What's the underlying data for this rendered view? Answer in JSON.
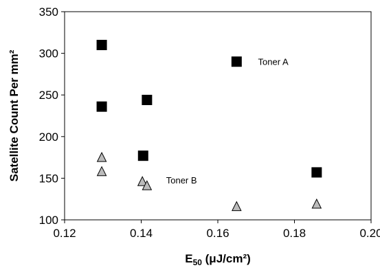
{
  "chart_data": {
    "type": "scatter",
    "xlabel": "E",
    "xlabel_subscript": "50",
    "xlabel_units": " (μJ/cm²)",
    "ylabel": "Satellite Count Per mm²",
    "xlim": [
      0.12,
      0.2
    ],
    "ylim": [
      100,
      350
    ],
    "xticks": [
      "0.12",
      "0.14",
      "0.16",
      "0.18",
      "0.20"
    ],
    "yticks": [
      "100",
      "150",
      "200",
      "250",
      "300",
      "350"
    ],
    "grid": false,
    "series": [
      {
        "name": "Toner A",
        "marker": "square",
        "color": "#000000",
        "points": [
          {
            "x": 0.1297,
            "y": 310
          },
          {
            "x": 0.1297,
            "y": 236
          },
          {
            "x": 0.1415,
            "y": 244
          },
          {
            "x": 0.1405,
            "y": 177
          },
          {
            "x": 0.1649,
            "y": 290
          },
          {
            "x": 0.1858,
            "y": 157
          }
        ]
      },
      {
        "name": "Toner B",
        "marker": "triangle",
        "color": "#bbbbbb",
        "points": [
          {
            "x": 0.1297,
            "y": 175
          },
          {
            "x": 0.1297,
            "y": 158
          },
          {
            "x": 0.1403,
            "y": 146
          },
          {
            "x": 0.1415,
            "y": 141
          },
          {
            "x": 0.1649,
            "y": 116
          },
          {
            "x": 0.1858,
            "y": 119
          }
        ]
      }
    ],
    "annotations": [
      {
        "text": "Toner A",
        "x": 0.1705,
        "y": 290
      },
      {
        "text": "Toner B",
        "x": 0.1465,
        "y": 148
      }
    ]
  }
}
